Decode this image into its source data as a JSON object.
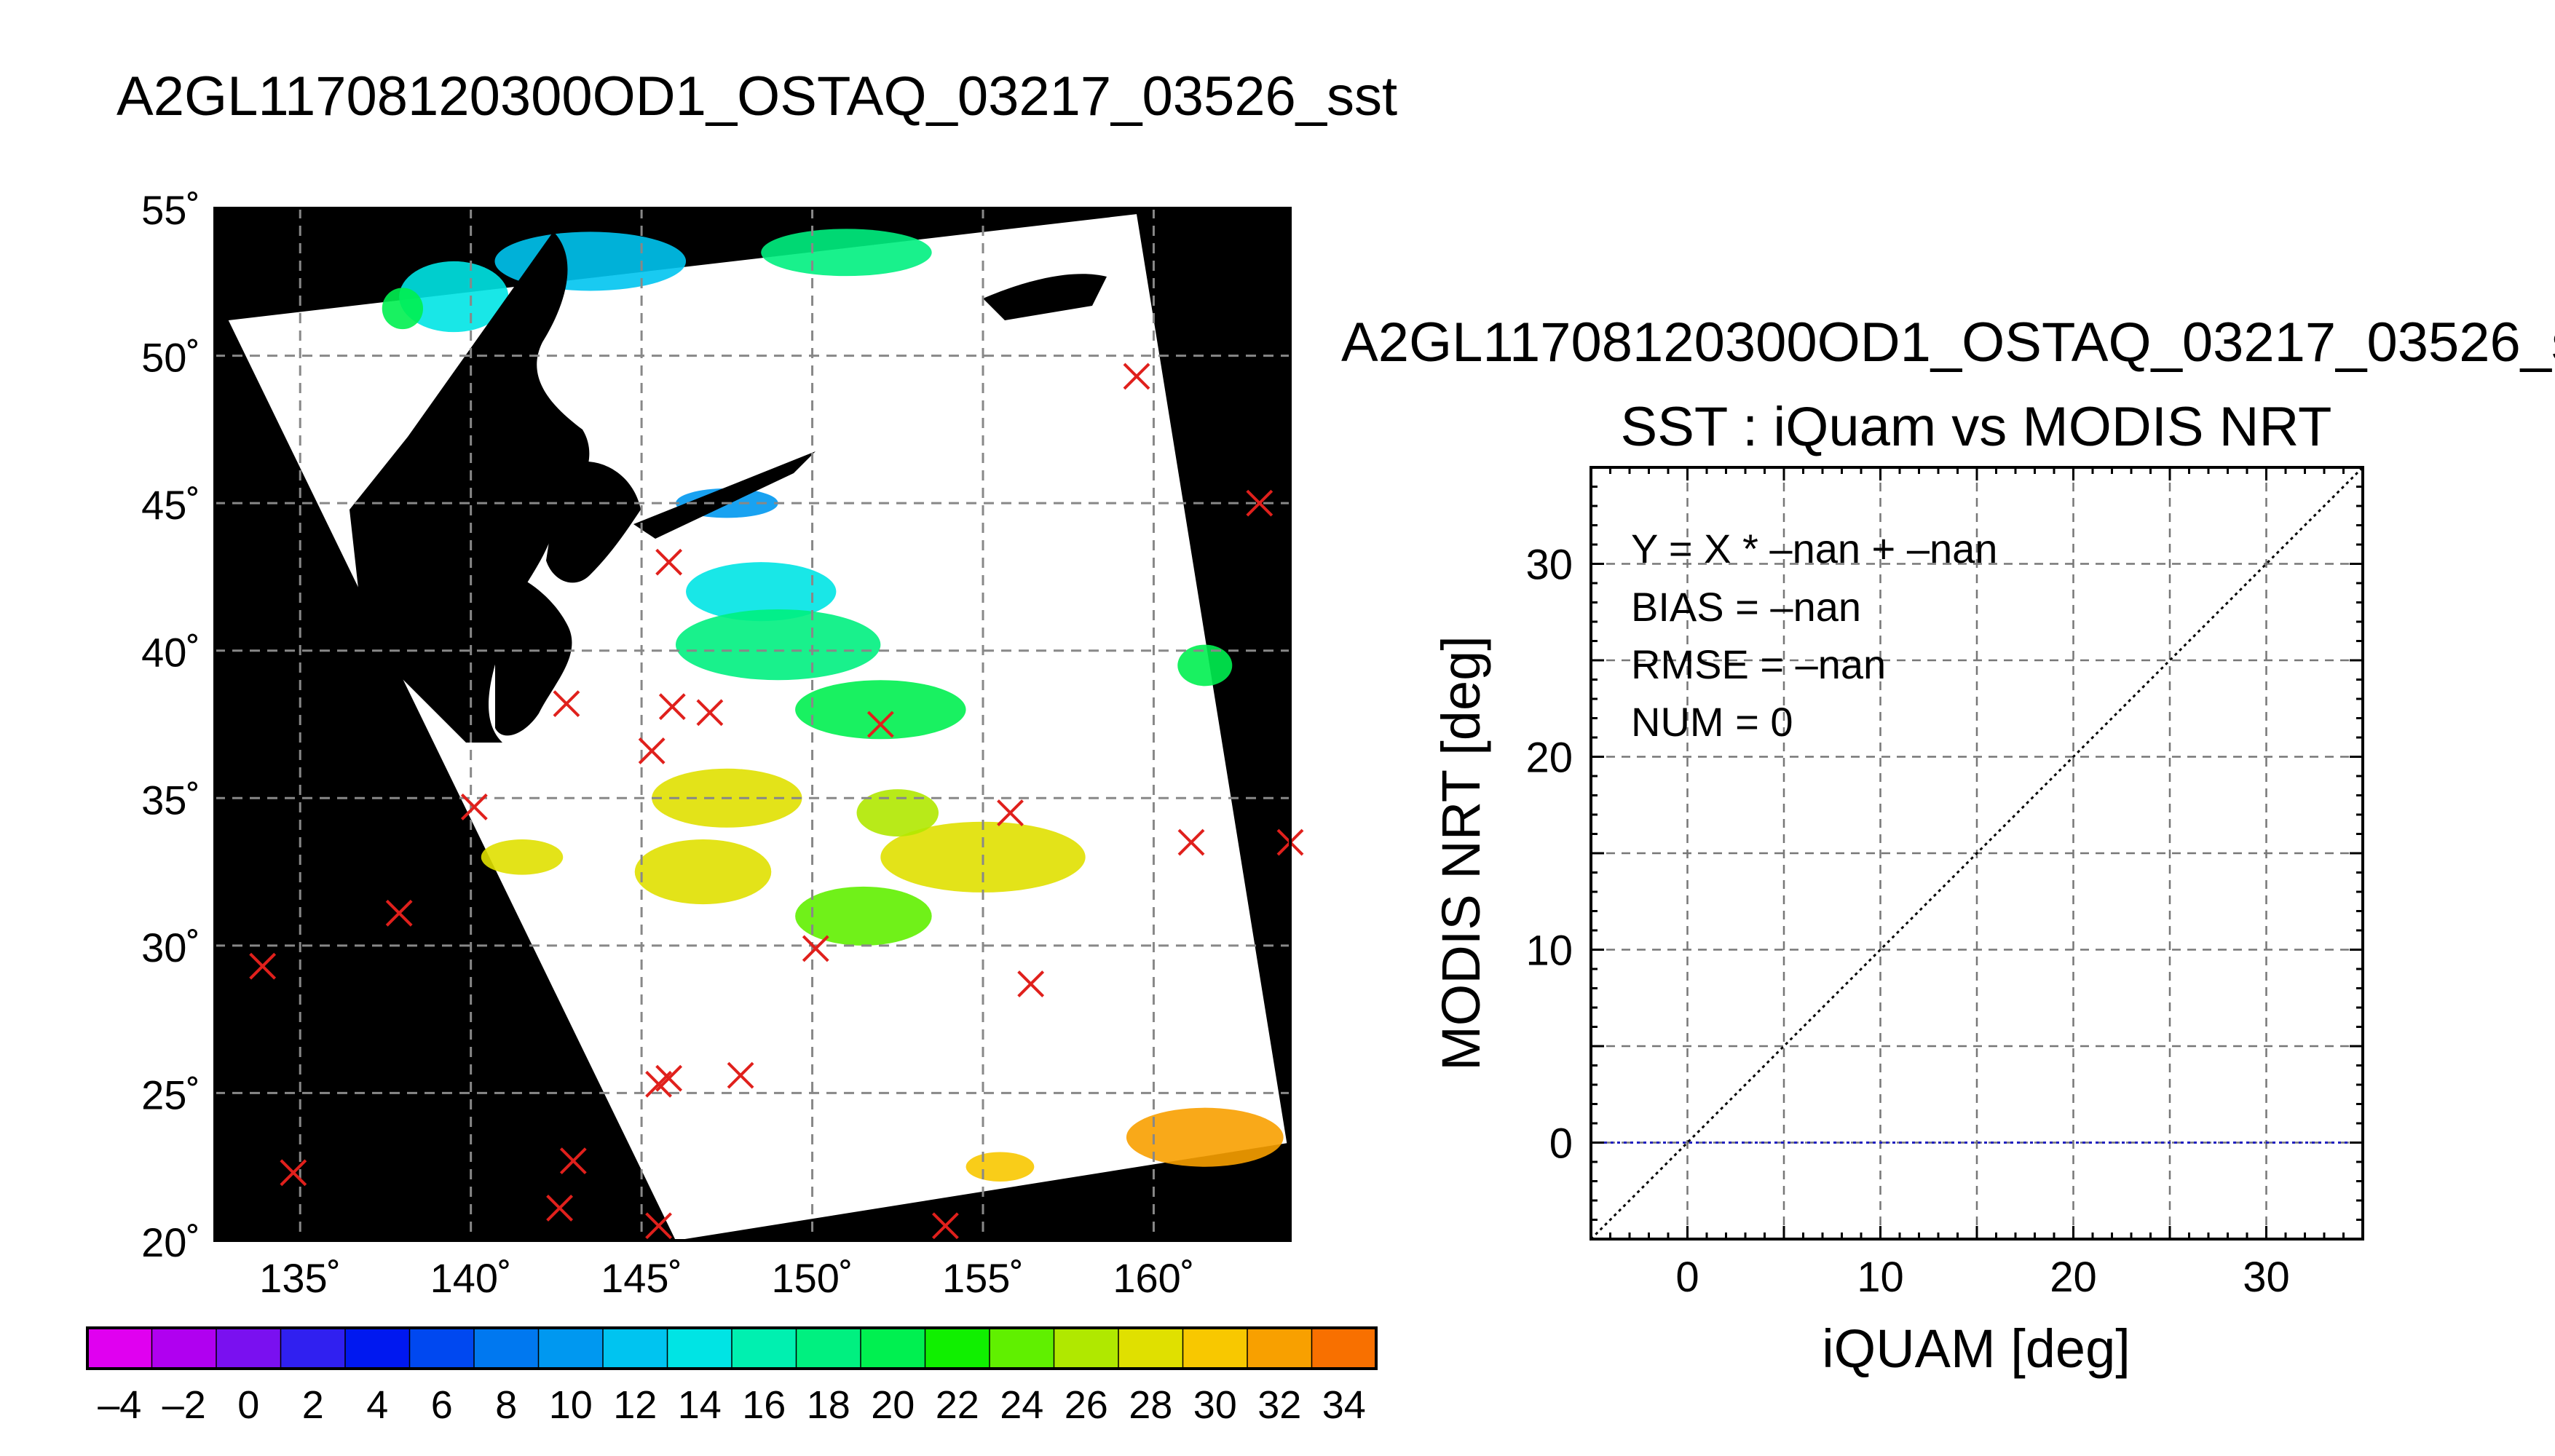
{
  "map_title": "A2GL11708120300OD1_OSTAQ_03217_03526_sst",
  "scatter_header": "A2GL11708120300OD1_OSTAQ_03217_03526_s",
  "chart_data": [
    {
      "type": "map",
      "title": "A2GL11708120300OD1_OSTAQ_03217_03526_sst",
      "lon_range": [
        132.5,
        164
      ],
      "lat_range": [
        20,
        55
      ],
      "lon_ticks": [
        135,
        140,
        145,
        150,
        155,
        160
      ],
      "lat_ticks": [
        20,
        25,
        30,
        35,
        40,
        45,
        50,
        55
      ],
      "lon_tick_labels": [
        "135˚",
        "140˚",
        "145˚",
        "150˚",
        "155˚",
        "160˚"
      ],
      "lat_tick_labels": [
        "20˚",
        "25˚",
        "30˚",
        "35˚",
        "40˚",
        "45˚",
        "50˚",
        "55˚"
      ],
      "grid": true,
      "swath_corners": [
        [
          132.9,
          51.2
        ],
        [
          159.5,
          54.8
        ],
        [
          163.9,
          23.3
        ],
        [
          146.0,
          20.0
        ]
      ],
      "markers": {
        "symbol": "x",
        "color": "#e0201c",
        "points": [
          [
            133.9,
            29.3
          ],
          [
            134.8,
            22.3
          ],
          [
            137.9,
            31.1
          ],
          [
            140.1,
            34.7
          ],
          [
            142.6,
            21.1
          ],
          [
            143.0,
            22.7
          ],
          [
            142.8,
            38.2
          ],
          [
            145.3,
            36.6
          ],
          [
            145.9,
            38.1
          ],
          [
            147.0,
            37.9
          ],
          [
            145.8,
            43.0
          ],
          [
            145.5,
            25.3
          ],
          [
            145.8,
            25.5
          ],
          [
            145.5,
            20.5
          ],
          [
            147.9,
            25.6
          ],
          [
            150.1,
            29.9
          ],
          [
            152.0,
            37.5
          ],
          [
            153.9,
            20.5
          ],
          [
            155.8,
            34.5
          ],
          [
            156.4,
            28.7
          ],
          [
            159.5,
            49.3
          ],
          [
            161.1,
            33.5
          ],
          [
            163.1,
            45.0
          ],
          [
            164.0,
            33.5
          ]
        ]
      }
    },
    {
      "type": "colorbar",
      "range": [
        -5,
        35
      ],
      "step": 2,
      "tick_labels": [
        "–4",
        "–2",
        "0",
        "2",
        "4",
        "6",
        "8",
        "10",
        "12",
        "14",
        "16",
        "18",
        "20",
        "22",
        "24",
        "26",
        "28",
        "30",
        "32",
        "34"
      ],
      "colors": [
        "#e000f0",
        "#b000f0",
        "#7a10f0",
        "#3020f0",
        "#0018f0",
        "#0048f0",
        "#0078f0",
        "#0098f0",
        "#00c4f0",
        "#00e4e4",
        "#00f0b0",
        "#00f080",
        "#00f050",
        "#10f000",
        "#60f000",
        "#b0e800",
        "#e0e000",
        "#f8c800",
        "#f8a000",
        "#f87000",
        "#f84400",
        "#f81800"
      ]
    },
    {
      "type": "scatter",
      "title": "SST : iQuam vs MODIS NRT",
      "xlabel": "iQUAM [deg]",
      "ylabel": "MODIS NRT [deg]",
      "xlim": [
        -5,
        35
      ],
      "ylim": [
        -5,
        35
      ],
      "x_ticks": [
        0,
        10,
        20,
        30
      ],
      "y_ticks": [
        0,
        10,
        20,
        30
      ],
      "grid": true,
      "grid_step": 5,
      "points": [],
      "reference_line": {
        "name": "y = x",
        "style": "dotted",
        "color": "#000000"
      },
      "fit_line": {
        "y": 0,
        "style": "dotted",
        "color": "#2020c0"
      },
      "annotations": [
        "Y = X * –nan + –nan",
        "BIAS = –nan",
        "RMSE = –nan",
        "NUM = 0"
      ]
    }
  ]
}
